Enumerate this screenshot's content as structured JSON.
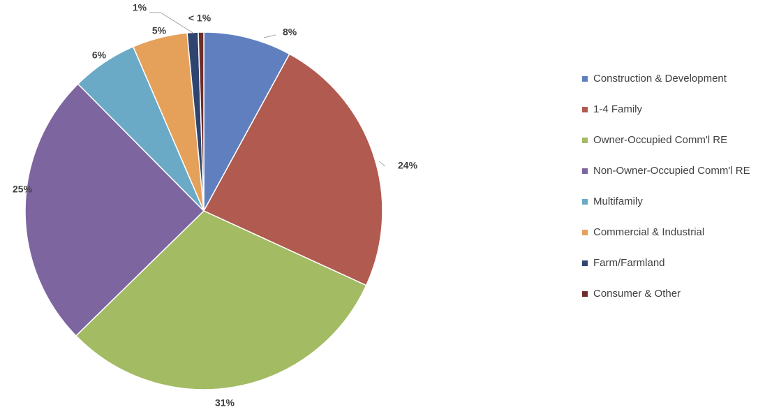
{
  "chart_data": {
    "type": "pie",
    "categories": [
      "Construction & Development",
      "1-4 Family",
      "Owner-Occupied Comm'l RE",
      "Non-Owner-Occupied Comm'l RE",
      "Multifamily",
      "Commercial & Industrial",
      "Farm/Farmland",
      "Consumer & Other"
    ],
    "values": [
      8,
      24,
      31,
      25,
      6,
      5,
      1,
      0.5
    ],
    "value_labels": [
      "8%",
      "24%",
      "31%",
      "25%",
      "6%",
      "5%",
      "1%",
      "< 1%"
    ],
    "colors": [
      "#5f7fbf",
      "#b05a50",
      "#a3bb63",
      "#7d65a0",
      "#6aaac6",
      "#e5a05a",
      "#2f4570",
      "#6e2e2a"
    ],
    "legend": "right"
  }
}
